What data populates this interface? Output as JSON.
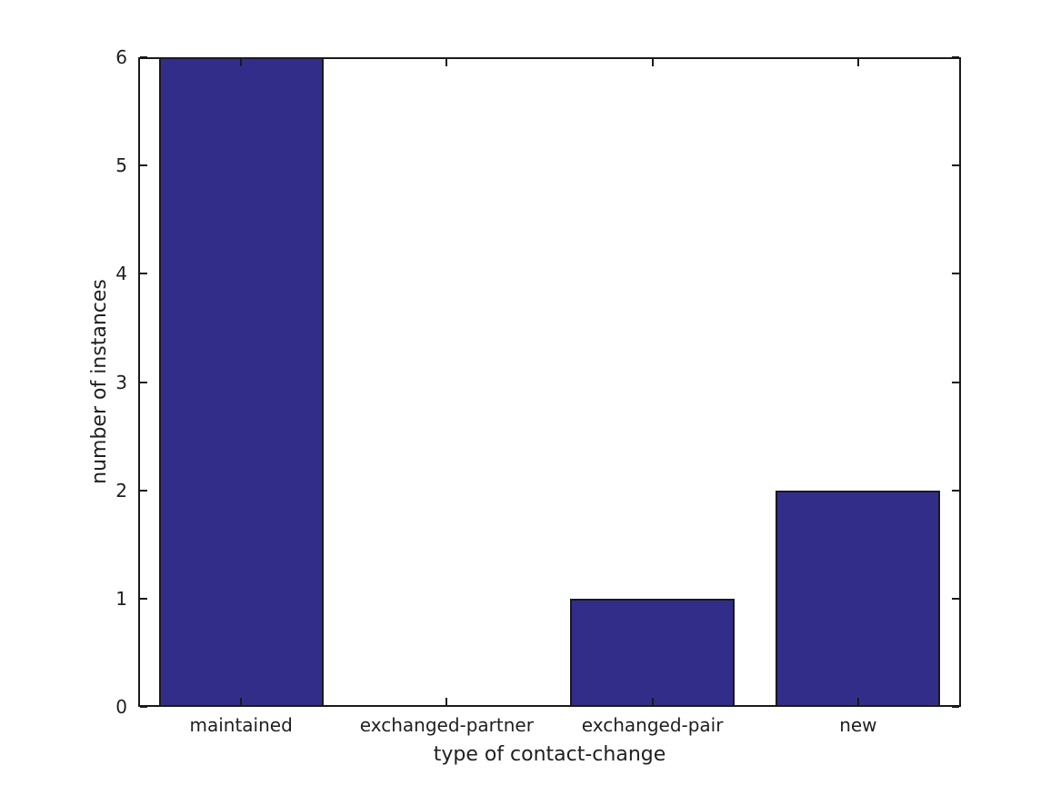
{
  "figure": {
    "background": "#ffffff"
  },
  "chart_data": {
    "type": "bar",
    "title": "",
    "categories": [
      "maintained",
      "exchanged-partner",
      "exchanged-pair",
      "new"
    ],
    "values": [
      6,
      0,
      1,
      2
    ],
    "xlabel": "type of contact-change",
    "ylabel": "number of instances",
    "ylim": [
      0,
      6
    ],
    "yticks": [
      0,
      1,
      2,
      3,
      4,
      5,
      6
    ],
    "bar_width_fraction": 0.8,
    "grid": false,
    "legend": "none",
    "tick_direction": "in",
    "bar_color": "#332D8A",
    "bar_edge_color": "#1a1a1a",
    "axis_color": "#1a1a1a",
    "text_color": "#1f1f1f"
  }
}
